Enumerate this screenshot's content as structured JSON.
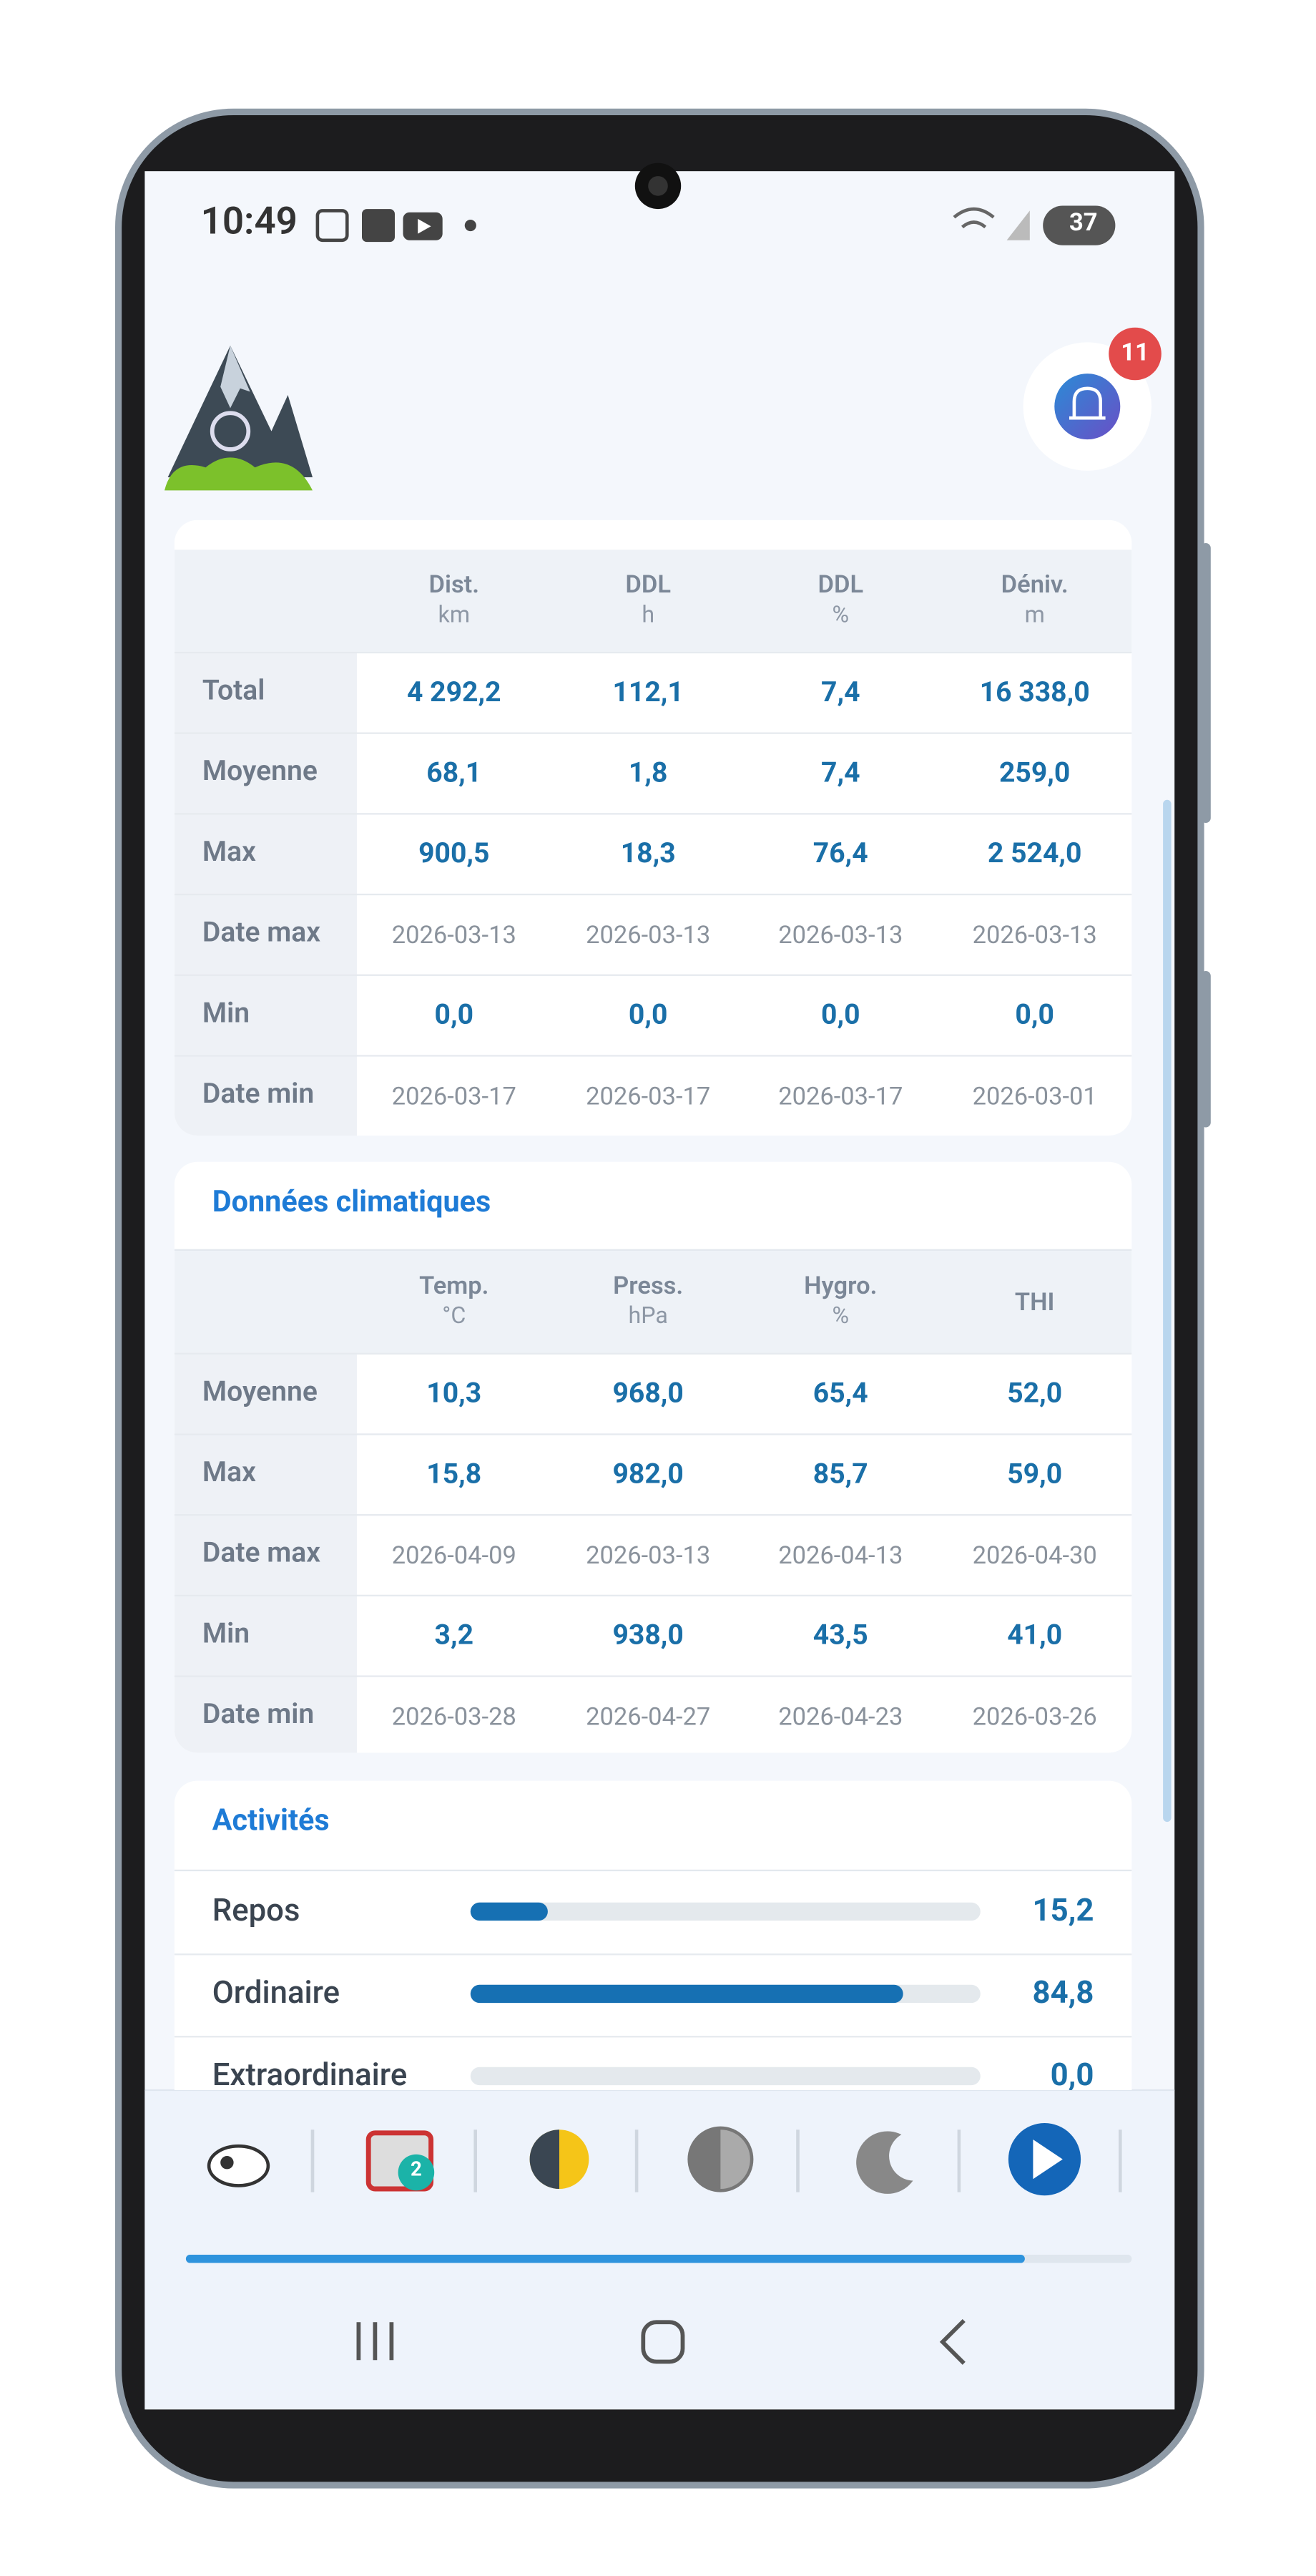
{
  "status_bar": {
    "time": "10:49",
    "battery": "37"
  },
  "notification": {
    "badge": "11"
  },
  "distance_table": {
    "columns": [
      {
        "name": "Dist.",
        "unit": "km"
      },
      {
        "name": "DDL",
        "unit": "h"
      },
      {
        "name": "DDL",
        "unit": "%"
      },
      {
        "name": "Déniv.",
        "unit": "m"
      }
    ],
    "rows": [
      {
        "label": "Total",
        "cells": [
          "4 292,2",
          "112,1",
          "7,4",
          "16 338,0"
        ]
      },
      {
        "label": "Moyenne",
        "cells": [
          "68,1",
          "1,8",
          "7,4",
          "259,0"
        ]
      },
      {
        "label": "Max",
        "cells": [
          "900,5",
          "18,3",
          "76,4",
          "2 524,0"
        ]
      },
      {
        "label": "Date max",
        "cells": [
          "2026-03-13",
          "2026-03-13",
          "2026-03-13",
          "2026-03-13"
        ]
      },
      {
        "label": "Min",
        "cells": [
          "0,0",
          "0,0",
          "0,0",
          "0,0"
        ]
      },
      {
        "label": "Date min",
        "cells": [
          "2026-03-17",
          "2026-03-17",
          "2026-03-17",
          "2026-03-01"
        ]
      }
    ]
  },
  "climate_table": {
    "title": "Données climatiques",
    "columns": [
      {
        "name": "Temp.",
        "unit": "°C"
      },
      {
        "name": "Press.",
        "unit": "hPa"
      },
      {
        "name": "Hygro.",
        "unit": "%"
      },
      {
        "name": "THI"
      }
    ],
    "rows": [
      {
        "label": "Moyenne",
        "cells": [
          "10,3",
          "968,0",
          "65,4",
          "52,0"
        ]
      },
      {
        "label": "Max",
        "cells": [
          "15,8",
          "982,0",
          "85,7",
          "59,0"
        ]
      },
      {
        "label": "Date max",
        "cells": [
          "2026-04-09",
          "2026-03-13",
          "2026-04-13",
          "2026-04-30"
        ]
      },
      {
        "label": "Min",
        "cells": [
          "3,2",
          "938,0",
          "43,5",
          "41,0"
        ]
      },
      {
        "label": "Date min",
        "cells": [
          "2026-03-28",
          "2026-04-27",
          "2026-04-23",
          "2026-03-26"
        ]
      }
    ]
  },
  "activities": {
    "title": "Activités",
    "xlim": [
      0,
      100
    ],
    "items": [
      {
        "label": "Repos",
        "value": 15.2,
        "value_label": "15,2"
      },
      {
        "label": "Ordinaire",
        "value": 84.8,
        "value_label": "84,8"
      },
      {
        "label": "Extraordinaire",
        "value": 0.0,
        "value_label": "0,0"
      }
    ]
  },
  "bottom_nav": {
    "calendar_badge": "2"
  }
}
